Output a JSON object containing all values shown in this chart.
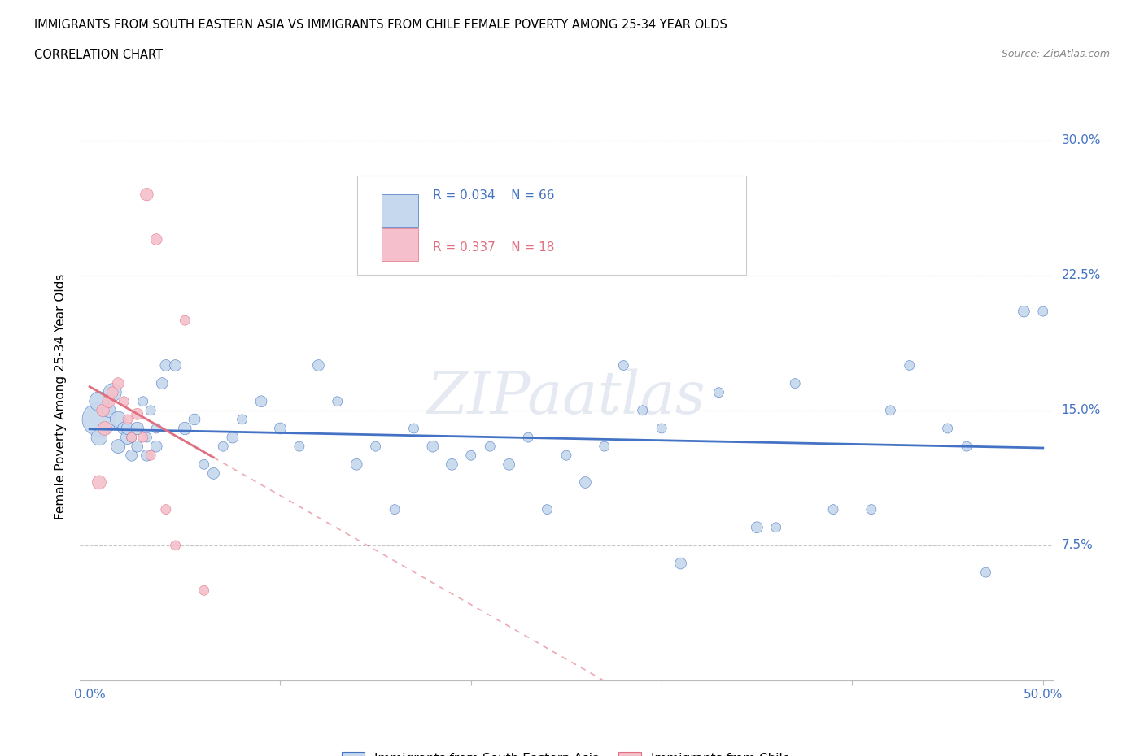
{
  "title_line1": "IMMIGRANTS FROM SOUTH EASTERN ASIA VS IMMIGRANTS FROM CHILE FEMALE POVERTY AMONG 25-34 YEAR OLDS",
  "title_line2": "CORRELATION CHART",
  "source": "Source: ZipAtlas.com",
  "ylabel": "Female Poverty Among 25-34 Year Olds",
  "xlim": [
    -0.005,
    0.505
  ],
  "ylim": [
    0.0,
    0.315
  ],
  "xticks": [
    0.0,
    0.1,
    0.2,
    0.3,
    0.4,
    0.5
  ],
  "xtick_labels": [
    "0.0%",
    "",
    "",
    "",
    "",
    "50.0%"
  ],
  "yticks": [
    0.075,
    0.15,
    0.225,
    0.3
  ],
  "ytick_labels": [
    "7.5%",
    "15.0%",
    "22.5%",
    "30.0%"
  ],
  "r_sea": 0.034,
  "n_sea": 66,
  "r_chile": 0.337,
  "n_chile": 18,
  "legend_label_sea": "Immigrants from South Eastern Asia",
  "legend_label_chile": "Immigrants from Chile",
  "color_sea": "#c5d8ed",
  "color_chile": "#f5c0cb",
  "trendline_color_sea": "#4472c4",
  "trendline_color_chile": "#e07080",
  "watermark": "ZIPaatlas",
  "sea_x": [
    0.005,
    0.005,
    0.005,
    0.01,
    0.012,
    0.015,
    0.015,
    0.018,
    0.02,
    0.02,
    0.022,
    0.022,
    0.025,
    0.025,
    0.028,
    0.03,
    0.03,
    0.032,
    0.035,
    0.035,
    0.038,
    0.04,
    0.045,
    0.05,
    0.055,
    0.06,
    0.065,
    0.07,
    0.075,
    0.08,
    0.09,
    0.1,
    0.11,
    0.12,
    0.13,
    0.14,
    0.15,
    0.16,
    0.17,
    0.18,
    0.19,
    0.2,
    0.21,
    0.22,
    0.23,
    0.24,
    0.25,
    0.26,
    0.27,
    0.28,
    0.29,
    0.3,
    0.31,
    0.33,
    0.35,
    0.37,
    0.39,
    0.41,
    0.43,
    0.45,
    0.47,
    0.49,
    0.5,
    0.36,
    0.42,
    0.46
  ],
  "sea_y": [
    0.145,
    0.155,
    0.135,
    0.15,
    0.16,
    0.145,
    0.13,
    0.14,
    0.135,
    0.14,
    0.125,
    0.135,
    0.14,
    0.13,
    0.155,
    0.125,
    0.135,
    0.15,
    0.13,
    0.14,
    0.165,
    0.175,
    0.175,
    0.14,
    0.145,
    0.12,
    0.115,
    0.13,
    0.135,
    0.145,
    0.155,
    0.14,
    0.13,
    0.175,
    0.155,
    0.12,
    0.13,
    0.095,
    0.14,
    0.13,
    0.12,
    0.125,
    0.13,
    0.12,
    0.135,
    0.095,
    0.125,
    0.11,
    0.13,
    0.175,
    0.15,
    0.14,
    0.065,
    0.16,
    0.085,
    0.165,
    0.095,
    0.095,
    0.175,
    0.14,
    0.06,
    0.205,
    0.205,
    0.085,
    0.15,
    0.13
  ],
  "sea_size": [
    900,
    300,
    200,
    150,
    250,
    200,
    150,
    125,
    150,
    125,
    100,
    75,
    125,
    100,
    75,
    100,
    75,
    75,
    100,
    75,
    100,
    100,
    100,
    125,
    100,
    75,
    100,
    75,
    100,
    75,
    100,
    100,
    75,
    100,
    75,
    100,
    75,
    75,
    75,
    100,
    100,
    75,
    75,
    100,
    75,
    75,
    75,
    100,
    75,
    75,
    75,
    75,
    100,
    75,
    100,
    75,
    75,
    75,
    75,
    75,
    75,
    100,
    75,
    75,
    75,
    75
  ],
  "chile_x": [
    0.005,
    0.007,
    0.008,
    0.01,
    0.012,
    0.015,
    0.018,
    0.02,
    0.022,
    0.025,
    0.028,
    0.03,
    0.032,
    0.035,
    0.04,
    0.045,
    0.05,
    0.06
  ],
  "chile_y": [
    0.11,
    0.15,
    0.14,
    0.155,
    0.16,
    0.165,
    0.155,
    0.145,
    0.135,
    0.148,
    0.135,
    0.27,
    0.125,
    0.245,
    0.095,
    0.075,
    0.2,
    0.05
  ],
  "chile_size": [
    150,
    125,
    150,
    125,
    100,
    100,
    75,
    75,
    75,
    100,
    75,
    125,
    75,
    100,
    75,
    75,
    75,
    75
  ]
}
